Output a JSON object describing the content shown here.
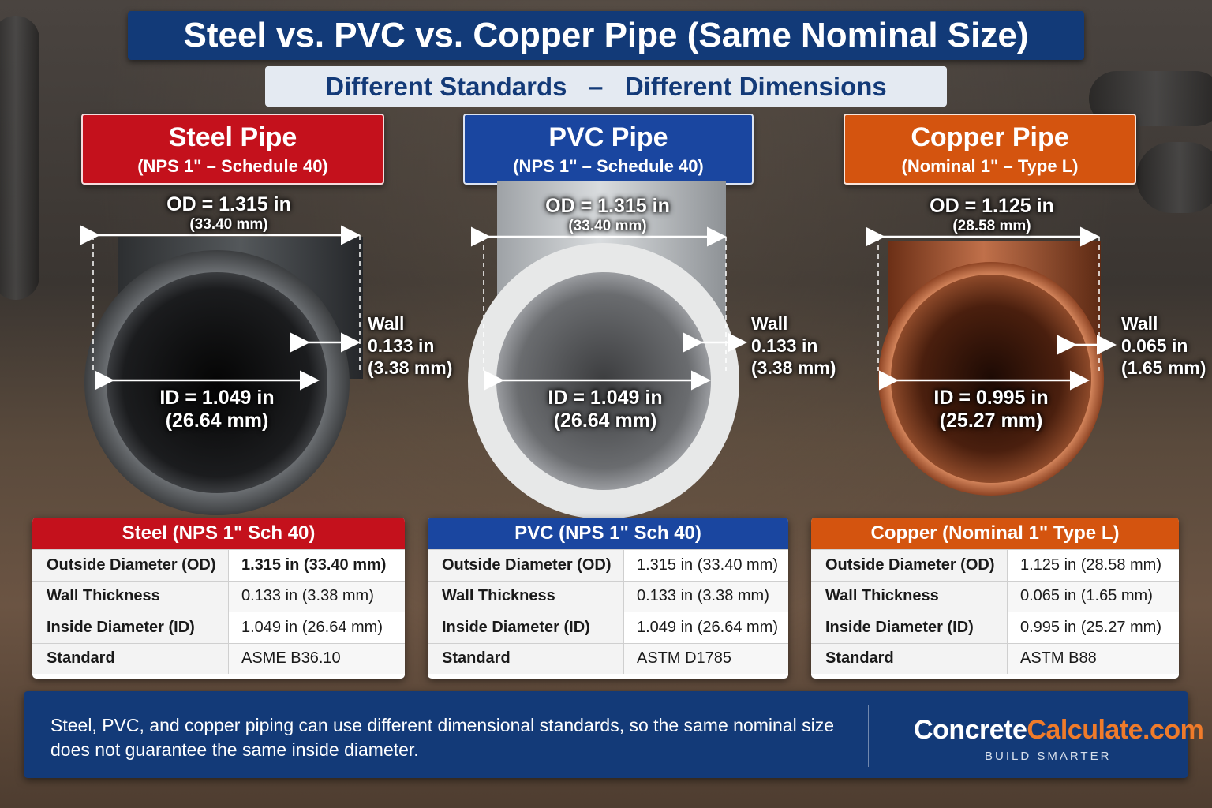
{
  "title": "Steel vs. PVC vs. Copper Pipe (Same Nominal Size)",
  "subtitle": "Different Standards   –   Different Dimensions",
  "pipes": [
    {
      "name": "Steel Pipe",
      "spec": "(NPS 1\" – Schedule 40)",
      "color": "#c4111c",
      "od": "OD = 1.315 in",
      "od_mm": "(33.40 mm)",
      "id": "ID = 1.049 in",
      "id_mm": "(26.64 mm)",
      "wall_label": "Wall",
      "wall": "0.133 in",
      "wall_mm": "(3.38 mm)"
    },
    {
      "name": "PVC Pipe",
      "spec": "(NPS 1\" – Schedule 40)",
      "color": "#1a46a0",
      "od": "OD = 1.315 in",
      "od_mm": "(33.40 mm)",
      "id": "ID = 1.049 in",
      "id_mm": "(26.64 mm)",
      "wall_label": "Wall",
      "wall": "0.133 in",
      "wall_mm": "(3.38 mm)"
    },
    {
      "name": "Copper Pipe",
      "spec": "(Nominal 1\" – Type L)",
      "color": "#d4540f",
      "od": "OD = 1.125 in",
      "od_mm": "(28.58 mm)",
      "id": "ID = 0.995 in",
      "id_mm": "(25.27 mm)",
      "wall_label": "Wall",
      "wall": "0.065 in",
      "wall_mm": "(1.65 mm)"
    }
  ],
  "tables": [
    {
      "heading": "Steel (NPS 1\" Sch 40)",
      "rows": [
        {
          "label": "Outside Diameter (OD)",
          "value": "1.315 in (33.40 mm)"
        },
        {
          "label": "Wall Thickness",
          "value": "0.133 in (3.38 mm)"
        },
        {
          "label": "Inside Diameter (ID)",
          "value": "1.049 in (26.64 mm)"
        },
        {
          "label": "Standard",
          "value": "ASME B36.10"
        }
      ]
    },
    {
      "heading": "PVC (NPS 1\" Sch 40)",
      "rows": [
        {
          "label": "Outside Diameter (OD)",
          "value": "1.315 in (33.40 mm)"
        },
        {
          "label": "Wall Thickness",
          "value": "0.133 in (3.38 mm)"
        },
        {
          "label": "Inside Diameter (ID)",
          "value": "1.049 in (26.64 mm)"
        },
        {
          "label": "Standard",
          "value": "ASTM D1785"
        }
      ]
    },
    {
      "heading": "Copper (Nominal 1\" Type L)",
      "rows": [
        {
          "label": "Outside Diameter (OD)",
          "value": "1.125 in (28.58 mm)"
        },
        {
          "label": "Wall Thickness",
          "value": "0.065 in (1.65 mm)"
        },
        {
          "label": "Inside Diameter (ID)",
          "value": "0.995 in (25.27 mm)"
        },
        {
          "label": "Standard",
          "value": "ASTM B88"
        }
      ]
    }
  ],
  "footer": {
    "note": "Steel, PVC, and copper piping can use different dimensional standards, so the same nominal size does not guarantee the same inside diameter.",
    "brand_part1": "Concrete",
    "brand_part2": "Calculate.com",
    "tagline": "BUILD SMARTER"
  }
}
